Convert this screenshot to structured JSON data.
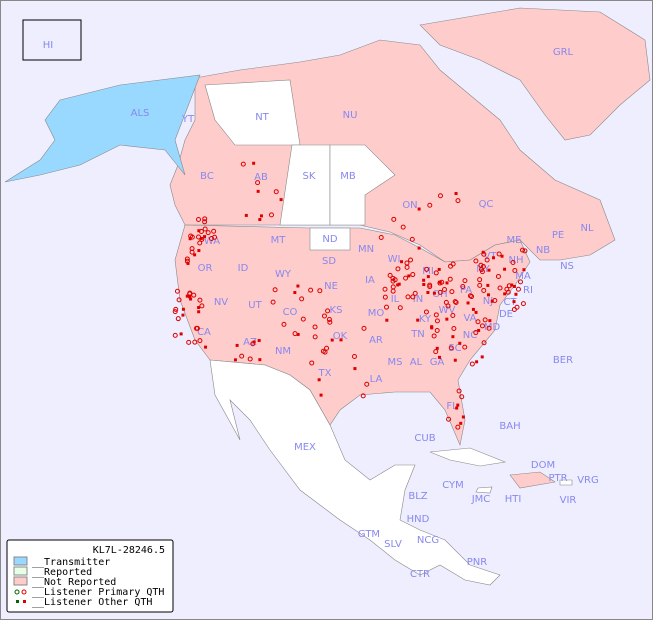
{
  "map": {
    "colors": {
      "ocean": "#eeeeff",
      "transmitter": "#99d9ff",
      "reported": "#e6ffe6",
      "not_reported": "#ffcccc",
      "unlisted": "#ffffff",
      "border": "#888888",
      "label": "#8888ee",
      "listener": "#dd0000",
      "listener_primary_outline": "#006600"
    },
    "region_labels": [
      "HI",
      "ALS",
      "YT",
      "NT",
      "NU",
      "GRL",
      "BC",
      "AB",
      "SK",
      "MB",
      "ON",
      "QC",
      "NL",
      "NS",
      "NB",
      "PE",
      "WA",
      "OR",
      "ID",
      "MT",
      "WY",
      "ND",
      "SD",
      "NE",
      "KS",
      "OK",
      "TX",
      "MN",
      "IA",
      "MO",
      "AR",
      "LA",
      "WI",
      "IL",
      "IN",
      "MI",
      "OH",
      "KY",
      "TN",
      "MS",
      "AL",
      "GA",
      "FL",
      "SC",
      "NC",
      "VA",
      "WV",
      "PA",
      "NY",
      "VT",
      "NH",
      "ME",
      "MA",
      "CT",
      "RI",
      "NJ",
      "DE",
      "MD",
      "CA",
      "NV",
      "UT",
      "CO",
      "AZ",
      "NM",
      "MEX",
      "BER",
      "BAH",
      "CUB",
      "CYM",
      "JMC",
      "HTI",
      "DOM",
      "PTR",
      "VRG",
      "VIR",
      "BLZ",
      "GTM",
      "HND",
      "SLV",
      "NCG",
      "CTR",
      "PNR"
    ]
  },
  "legend": {
    "title": "KL7L-28246.5",
    "items": [
      "__Transmitter",
      "__Reported",
      "__Not Reported",
      "__Listener Primary QTH",
      "__Listener Other QTH"
    ]
  }
}
